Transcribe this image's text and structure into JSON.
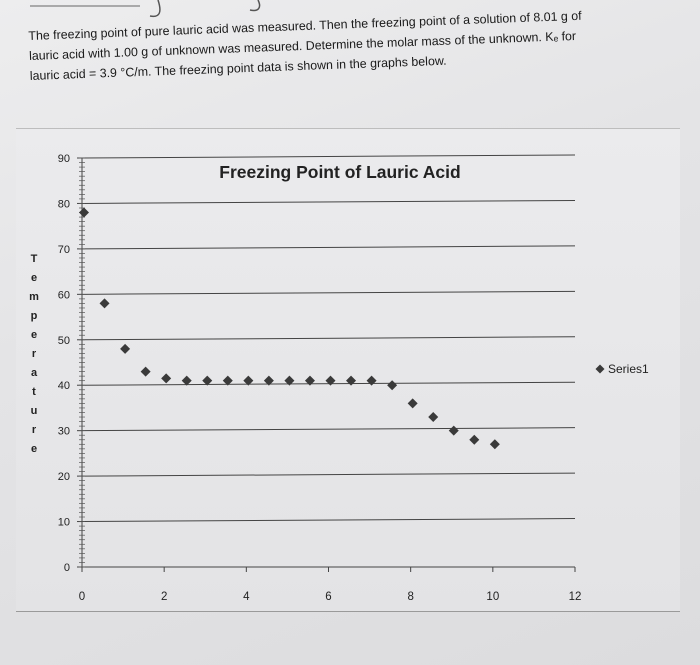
{
  "problem": {
    "lines": [
      "The freezing point of pure lauric acid was measured. Then the freezing point of a solution of 8.01 g of",
      "lauric acid with 1.00 g of unknown was measured. Determine the molar mass of the unknown. Kₑ for",
      "lauric acid = 3.9 °C/m. The freezing point data is shown in the graphs below."
    ]
  },
  "chart_data": {
    "type": "scatter",
    "title": "Freezing Point of Lauric Acid",
    "ylabel": "Temperature",
    "xlabel": "",
    "xlim": [
      0,
      12
    ],
    "ylim": [
      0,
      90
    ],
    "x_ticks": [
      "0",
      "2",
      "4",
      "6",
      "8",
      "10",
      "12"
    ],
    "y_ticks": [
      "0",
      "10",
      "20",
      "30",
      "40",
      "50",
      "60",
      "70",
      "80",
      "90"
    ],
    "grid": true,
    "legend": "right",
    "series": [
      {
        "name": "Series1",
        "color": "#3a3a3a",
        "marker": "diamond",
        "points": [
          [
            0,
            78
          ],
          [
            0.5,
            58
          ],
          [
            1,
            48
          ],
          [
            1.5,
            43
          ],
          [
            2,
            41.5
          ],
          [
            2.5,
            41
          ],
          [
            3,
            41
          ],
          [
            3.5,
            41
          ],
          [
            4,
            41
          ],
          [
            4.5,
            41
          ],
          [
            5,
            41
          ],
          [
            5.5,
            41
          ],
          [
            6,
            41
          ],
          [
            6.5,
            41
          ],
          [
            7,
            41
          ],
          [
            7.5,
            40
          ],
          [
            8,
            36
          ],
          [
            8.5,
            33
          ],
          [
            9,
            30
          ],
          [
            9.5,
            28
          ],
          [
            10,
            27
          ]
        ]
      }
    ]
  }
}
